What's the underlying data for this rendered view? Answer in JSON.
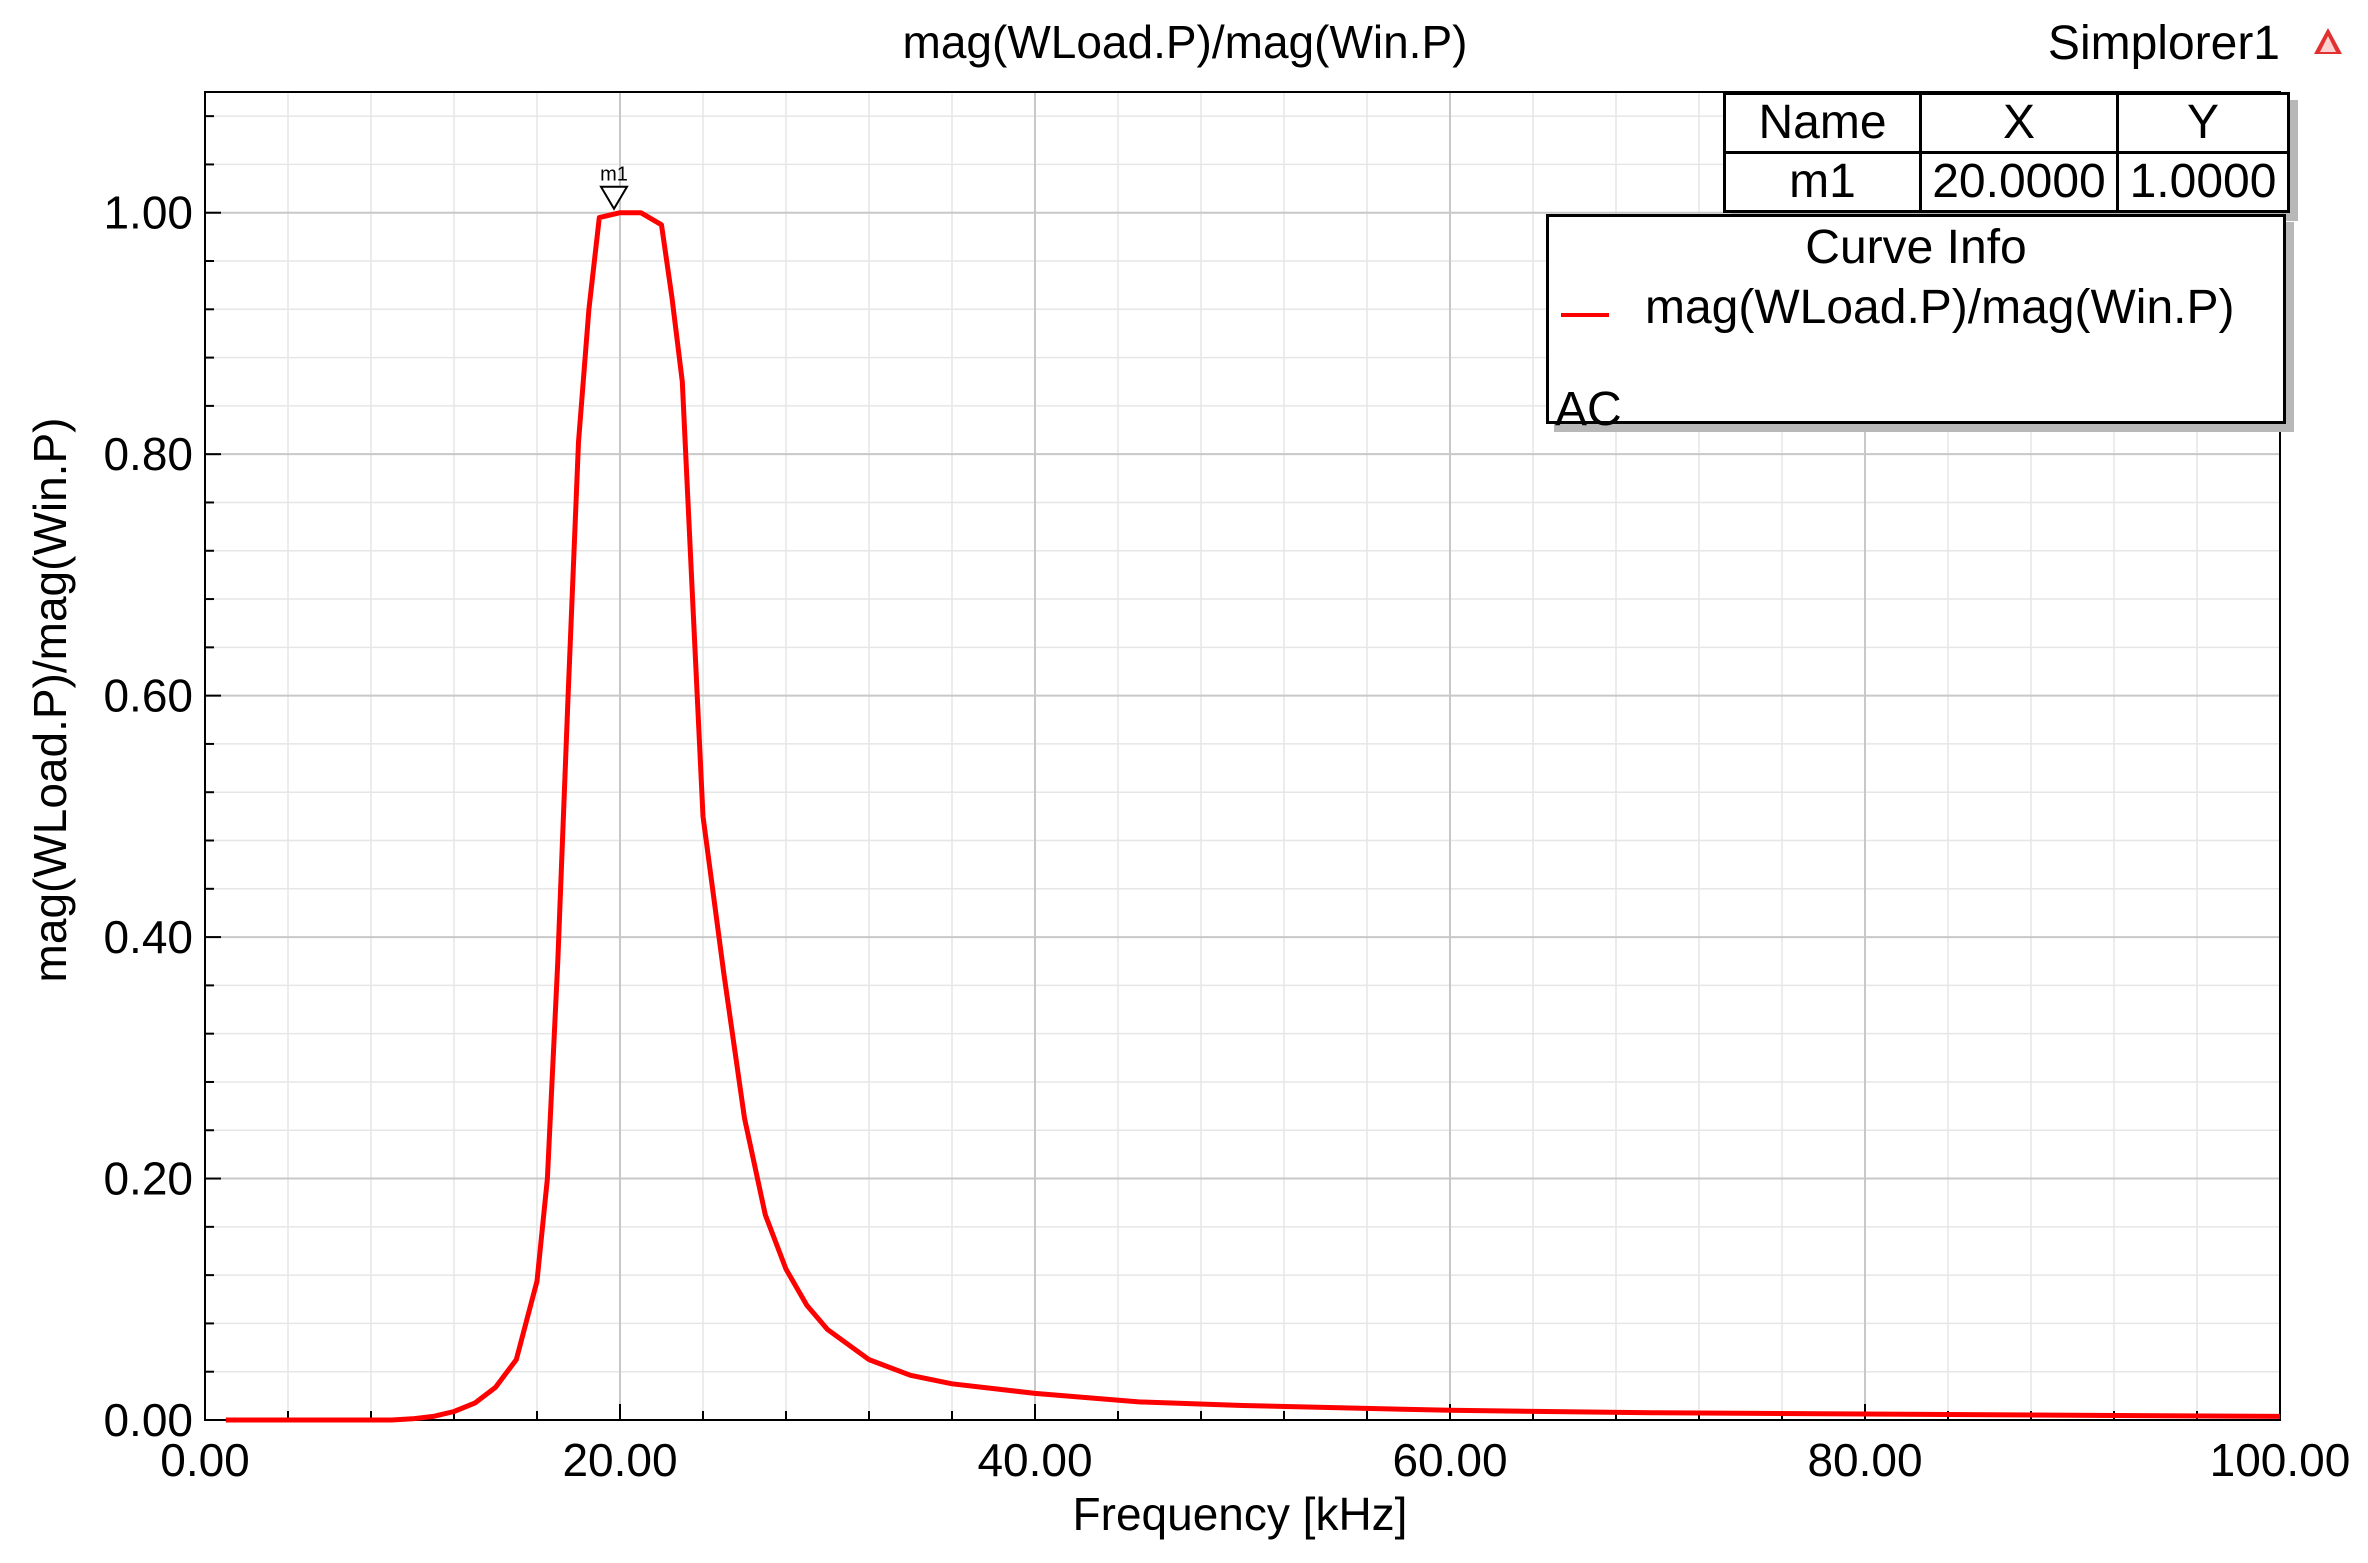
{
  "app": {
    "design_name": "Simplorer1",
    "icon": "ansys-simplorer-icon"
  },
  "colors": {
    "curve": "#ff0000",
    "grid_major": "#c8c8c8",
    "grid_minor": "#e6e6e6",
    "axis": "#000000"
  },
  "chart_data": {
    "type": "line",
    "title": "mag(WLoad.P)/mag(Win.P)",
    "xlabel": "Frequency [kHz]",
    "ylabel": "mag(WLoad.P)/mag(Win.P)",
    "xlim": [
      0,
      100
    ],
    "ylim": [
      0,
      1.1
    ],
    "xticks": [
      0,
      20,
      40,
      60,
      80,
      100
    ],
    "xtick_labels": [
      "0.00",
      "20.00",
      "40.00",
      "60.00",
      "80.00",
      "100.00"
    ],
    "yticks": [
      0,
      0.2,
      0.4,
      0.6,
      0.8,
      1.0
    ],
    "ytick_labels": [
      "0.00",
      "0.20",
      "0.40",
      "0.60",
      "0.80",
      "1.00"
    ],
    "grid": true,
    "series": [
      {
        "name": "mag(WLoad.P)/mag(Win.P)",
        "color": "#ff0000",
        "x": [
          1,
          5,
          9,
          10,
          11,
          12,
          13,
          14,
          15,
          16,
          16.5,
          17,
          17.5,
          18,
          18.5,
          19,
          20,
          21,
          22,
          22.5,
          23,
          23.5,
          24,
          25,
          26,
          27,
          28,
          29,
          30,
          32,
          34,
          36,
          40,
          45,
          50,
          60,
          70,
          80,
          90,
          100
        ],
        "y": [
          0.0,
          0.0,
          0.0,
          0.001,
          0.003,
          0.007,
          0.014,
          0.027,
          0.05,
          0.115,
          0.2,
          0.38,
          0.6,
          0.81,
          0.92,
          0.996,
          1.0,
          1.0,
          0.99,
          0.93,
          0.86,
          0.68,
          0.5,
          0.37,
          0.25,
          0.17,
          0.125,
          0.095,
          0.075,
          0.05,
          0.037,
          0.03,
          0.022,
          0.015,
          0.012,
          0.008,
          0.006,
          0.005,
          0.004,
          0.003
        ]
      }
    ],
    "marker": {
      "name": "m1",
      "x": 20.0,
      "y": 1.0
    },
    "marker_table": {
      "headers": [
        "Name",
        "X",
        "Y"
      ],
      "rows": [
        [
          "m1",
          "20.0000",
          "1.0000"
        ]
      ]
    },
    "legend": {
      "title": "Curve Info",
      "placement": "top-right",
      "entries": [
        {
          "name": "mag(WLoad.P)/mag(Win.P)",
          "sub": "AC"
        }
      ]
    }
  }
}
